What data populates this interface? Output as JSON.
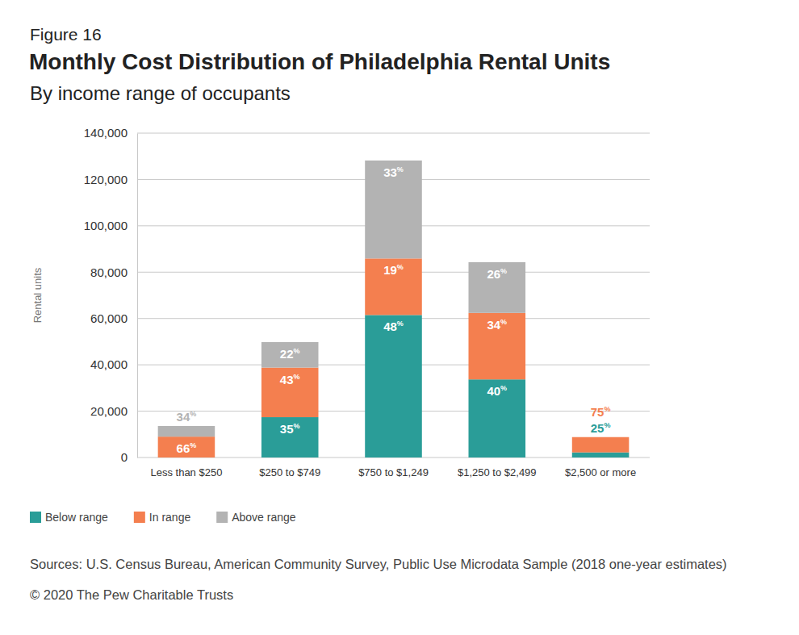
{
  "chart_data": {
    "type": "bar",
    "stacked": true,
    "figure_label": "Figure 16",
    "title": "Monthly Cost Distribution of Philadelphia Rental Units",
    "subtitle": "By income range of occupants",
    "y_label": "Rental units",
    "source": "Sources: U.S. Census Bureau, American Community Survey, Public Use Microdata Sample (2018 one-year estimates)",
    "copyright": "© 2020 The Pew Charitable Trusts",
    "categories": [
      "Less than $250",
      "$250 to $749",
      "$750 to $1,249",
      "$1,250 to $2,499",
      "$2,500 or more"
    ],
    "series": [
      {
        "name": "Below range",
        "color": "#2a9d98",
        "values": [
          0,
          17400,
          61500,
          33700,
          2200
        ],
        "share_labels": [
          null,
          "35%",
          "48%",
          "40%",
          "25%"
        ]
      },
      {
        "name": "In range",
        "color": "#f47f4f",
        "values": [
          9000,
          21400,
          24400,
          28700,
          6600
        ],
        "share_labels": [
          "66%",
          "43%",
          "19%",
          "34%",
          "75%"
        ]
      },
      {
        "name": "Above range",
        "color": "#b3b3b3",
        "values": [
          4600,
          11000,
          42300,
          21900,
          0
        ],
        "share_labels": [
          "34%",
          "22%",
          "33%",
          "26%",
          null
        ]
      }
    ],
    "ylim": [
      0,
      140000
    ],
    "yticks": [
      0,
      {
        "value": 20000,
        "label": "20,000"
      },
      {
        "value": 40000,
        "label": "40,000"
      },
      {
        "value": 60000,
        "label": "60,000"
      },
      {
        "value": 80000,
        "label": "80,000"
      },
      {
        "value": 100000,
        "label": "100,000"
      },
      {
        "value": 120000,
        "label": "120,000"
      },
      {
        "value": 140000,
        "label": "140,000"
      }
    ],
    "grid": true,
    "legend": "bottom-left"
  }
}
